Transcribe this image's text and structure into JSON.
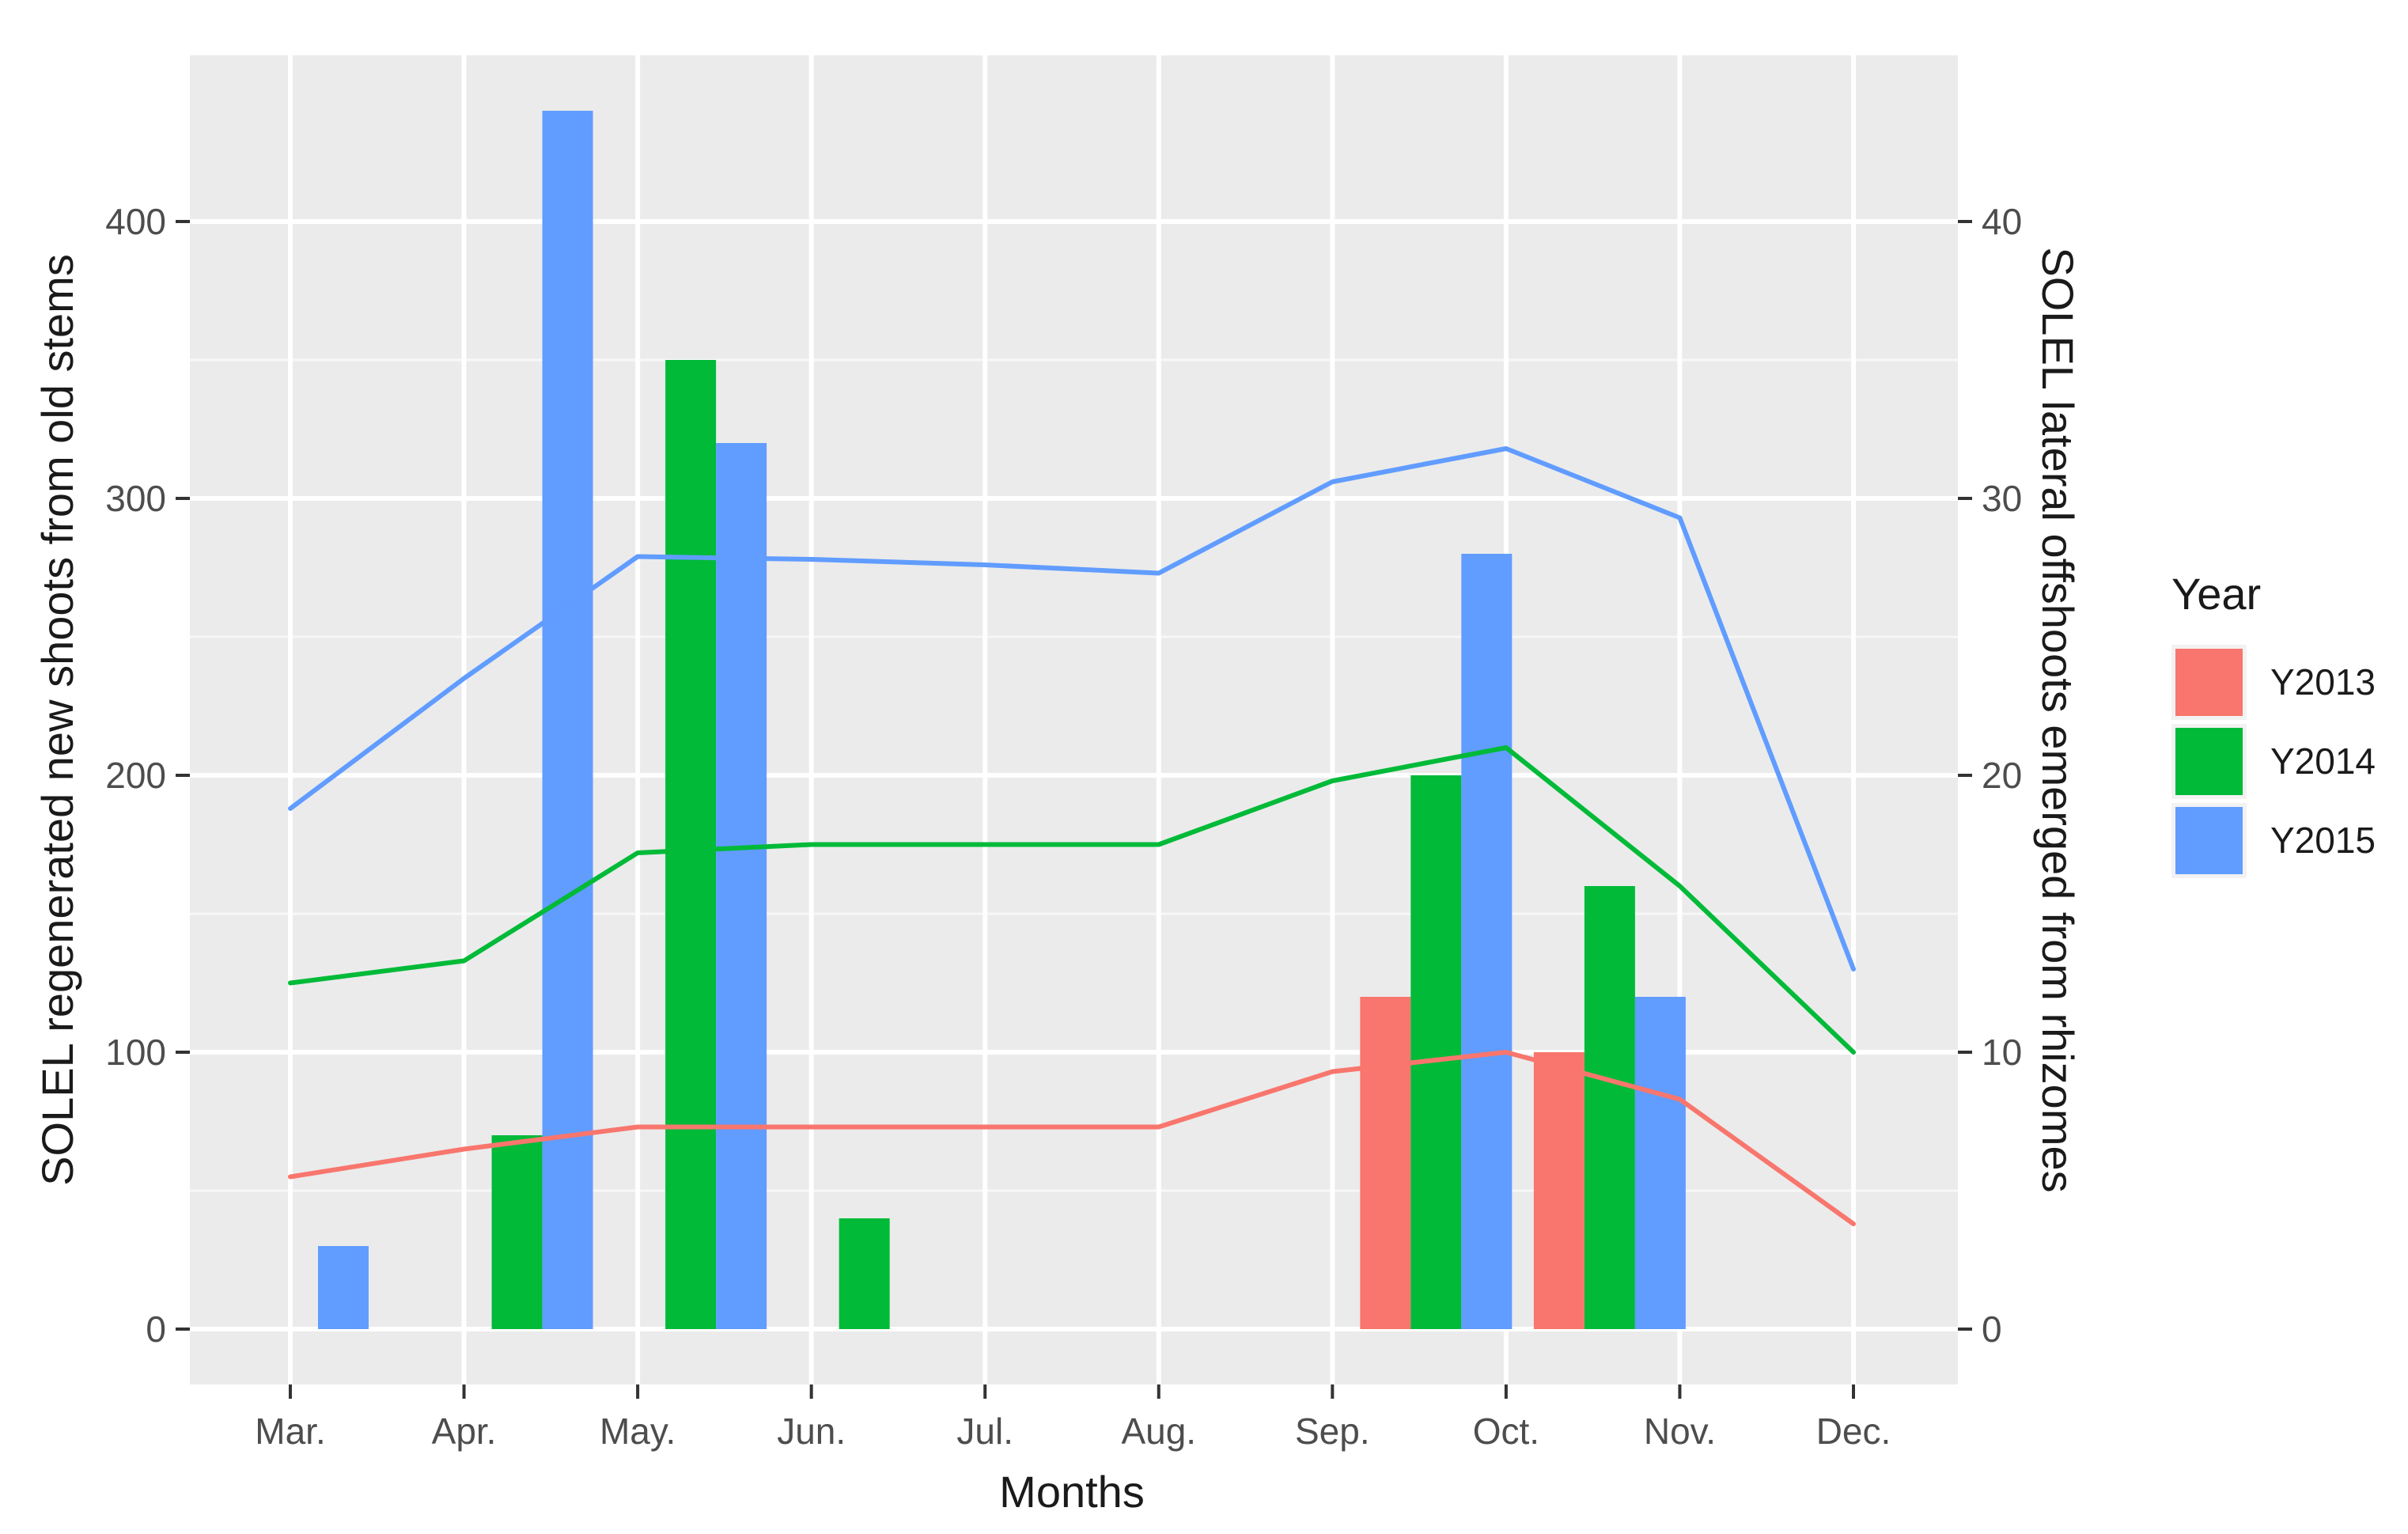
{
  "chart_data": {
    "type": "bar",
    "title": "",
    "xlabel": "Months",
    "ylabel_left": "SOLEL regenerated new shoots from old stems",
    "ylabel_right": "SOLEL lateral offshoots emerged from rhizomes",
    "categories": [
      "Mar.",
      "Apr.",
      "May.",
      "Jun.",
      "Jul.",
      "Aug.",
      "Sep.",
      "Oct.",
      "Nov.",
      "Dec."
    ],
    "ylim_left": [
      -20,
      460
    ],
    "ylim_right": [
      -2,
      46
    ],
    "yticks_left": [
      0,
      100,
      200,
      300,
      400
    ],
    "yticks_right": [
      0,
      10,
      20,
      30,
      40
    ],
    "grid": true,
    "legend": {
      "title": "Year",
      "placement": "right"
    },
    "series": [
      {
        "name": "Y2013",
        "color": "#F8766D",
        "bars": [
          null,
          null,
          null,
          null,
          null,
          null,
          120,
          100,
          null,
          null
        ],
        "line": [
          5.5,
          6.5,
          7.3,
          7.3,
          7.3,
          7.3,
          9.3,
          10.0,
          8.3,
          3.8
        ]
      },
      {
        "name": "Y2014",
        "color": "#00BA38",
        "bars": [
          null,
          70,
          350,
          40,
          null,
          null,
          200,
          160,
          null,
          null
        ],
        "line": [
          12.5,
          13.3,
          17.2,
          17.5,
          17.5,
          17.5,
          19.8,
          21.0,
          16.0,
          10.0
        ]
      },
      {
        "name": "Y2015",
        "color": "#619CFF",
        "bars": [
          30,
          440,
          320,
          null,
          null,
          null,
          280,
          120,
          null,
          null
        ],
        "line": [
          18.8,
          23.5,
          27.9,
          27.8,
          27.6,
          27.3,
          30.6,
          31.8,
          29.3,
          13.0
        ]
      }
    ]
  }
}
